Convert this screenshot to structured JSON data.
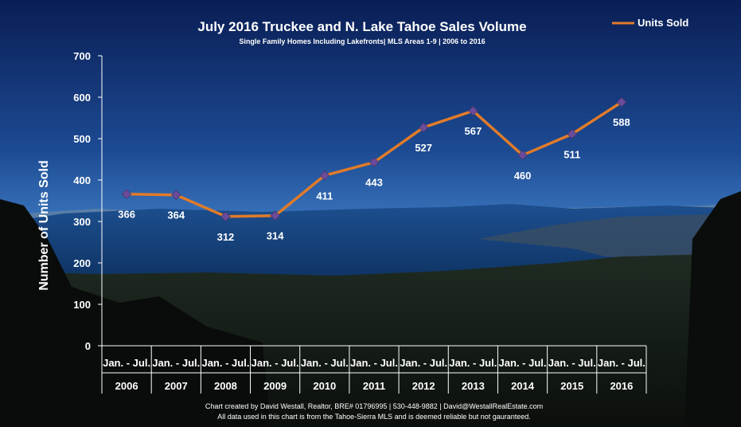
{
  "chart_data": {
    "type": "line",
    "title": "July 2016 Truckee and N. Lake Tahoe Sales Volume",
    "subtitle": "Single Family Homes Including Lakefronts| MLS Areas 1-9 | 2006 to 2016",
    "ylabel": "Number of Units Sold",
    "ylim": [
      0,
      700
    ],
    "yticks": [
      0,
      100,
      200,
      300,
      400,
      500,
      600,
      700
    ],
    "period_label": "Jan. - Jul.",
    "categories": [
      "2006",
      "2007",
      "2008",
      "2009",
      "2010",
      "2011",
      "2012",
      "2013",
      "2014",
      "2015",
      "2016"
    ],
    "series": [
      {
        "name": "Units Sold",
        "values": [
          366,
          364,
          312,
          314,
          411,
          443,
          527,
          567,
          460,
          511,
          588
        ]
      }
    ],
    "legend_position": "top-right",
    "grid": false,
    "colors": {
      "line": "#e07b2a",
      "marker": "#6b4c9a"
    }
  },
  "footer": {
    "line1": "Chart created by David Westall, Realtor, BRE# 01796995 | 530-448-9882 | David@WestallRealEstate.com",
    "line2": "All data used in this chart is from the Tahoe-Sierra MLS and is deemed reliable but not gauranteed."
  }
}
